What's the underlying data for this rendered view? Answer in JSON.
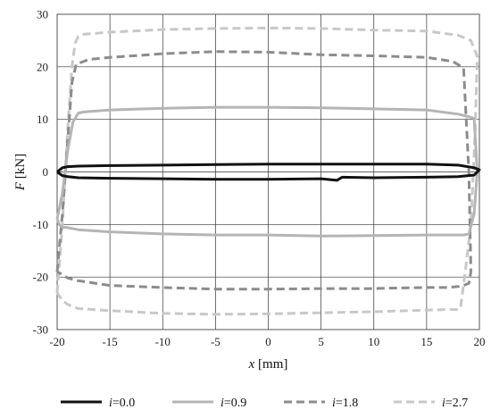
{
  "chart_data": {
    "type": "line",
    "xlabel_var": "x",
    "xlabel_unit": " [mm]",
    "ylabel_var": "F",
    "ylabel_unit": " [kN]",
    "xlim": [
      -20,
      20
    ],
    "ylim": [
      -30,
      30
    ],
    "xticks": [
      -20,
      -15,
      -10,
      -5,
      0,
      5,
      10,
      15,
      20
    ],
    "yticks": [
      -30,
      -20,
      -10,
      0,
      10,
      20,
      30
    ],
    "grid": true,
    "legend_placement": "bottom",
    "series": [
      {
        "name": "i=0.0",
        "legend_var": "i",
        "legend_val": "=0.0",
        "color": "#111111",
        "dash": "solid",
        "x": [
          -20,
          -19.5,
          -19,
          -18,
          -15,
          -10,
          -5,
          0,
          5,
          10,
          15,
          18,
          19.5,
          20,
          19.5,
          18,
          15,
          10,
          7,
          6.5,
          5,
          0,
          -5,
          -10,
          -15,
          -18,
          -19,
          -19.5,
          -20
        ],
        "y": [
          0,
          0.8,
          1.0,
          1.1,
          1.2,
          1.3,
          1.4,
          1.5,
          1.5,
          1.5,
          1.5,
          1.3,
          0.8,
          0.4,
          -0.6,
          -0.9,
          -1.0,
          -1.1,
          -1.0,
          -1.6,
          -1.3,
          -1.4,
          -1.4,
          -1.3,
          -1.2,
          -1.1,
          -0.9,
          -0.7,
          0
        ]
      },
      {
        "name": "i=0.9",
        "legend_var": "i",
        "legend_val": "=0.9",
        "color": "#b5b5b5",
        "dash": "solid",
        "x": [
          -20,
          -19.5,
          -19,
          -18.5,
          -18,
          -17.5,
          -15,
          -10,
          -5,
          0,
          5,
          10,
          15,
          18,
          19,
          19.5,
          19.8,
          19.5,
          19,
          18.5,
          18,
          15,
          10,
          5,
          0,
          -5,
          -10,
          -15,
          -18,
          -19,
          -19.5,
          -19.7,
          -19.8,
          -20
        ],
        "y": [
          -9,
          -4,
          4,
          9.5,
          11.2,
          11.4,
          11.8,
          12.1,
          12.3,
          12.3,
          12.2,
          12.0,
          11.8,
          11.0,
          10.5,
          10.2,
          0,
          -8,
          -11.8,
          -12,
          -12,
          -12,
          -12.1,
          -12.2,
          -12.0,
          -12.0,
          -11.8,
          -11.4,
          -11.0,
          -10.6,
          -10.5,
          -10.2,
          -10.0,
          -9
        ]
      },
      {
        "name": "i=1.8",
        "legend_var": "i",
        "legend_val": "=1.8",
        "color": "#8c8c8c",
        "dash": "dashed",
        "x": [
          -20,
          -19.5,
          -19,
          -18.6,
          -18.2,
          -17,
          -15,
          -12,
          -10,
          -5,
          0,
          5,
          10,
          15,
          17.5,
          18.5,
          19,
          19.2,
          19,
          18.5,
          18,
          17,
          15,
          12,
          10,
          5,
          0,
          -5,
          -10,
          -15,
          -18,
          -19,
          -19.5,
          -20
        ],
        "y": [
          -19,
          -8,
          6,
          17,
          20.5,
          21.4,
          21.8,
          22.2,
          22.5,
          22.9,
          22.8,
          22.3,
          22.1,
          21.8,
          21.0,
          19.8,
          0,
          -19,
          -21.2,
          -21.6,
          -21.8,
          -22.0,
          -22.0,
          -22.1,
          -22.2,
          -22.2,
          -22.3,
          -22.3,
          -22.0,
          -21.6,
          -20.7,
          -20.2,
          -19.5,
          -19
        ]
      },
      {
        "name": "i=2.7",
        "legend_var": "i",
        "legend_val": "=2.7",
        "color": "#c8c8c8",
        "dash": "dashed",
        "x": [
          -20,
          -19.5,
          -19,
          -18.6,
          -18.3,
          -18,
          -17.5,
          -15,
          -10,
          -5,
          0,
          5,
          10,
          15,
          18,
          19.2,
          19.8,
          19.6,
          19.2,
          18.6,
          18.2,
          17.8,
          17.4,
          17,
          15,
          10,
          5,
          0,
          -5,
          -10,
          -15,
          -18,
          -19,
          -19.5,
          -20
        ],
        "y": [
          -23,
          -10,
          8,
          20,
          24.5,
          25.8,
          26.2,
          26.6,
          27.1,
          27.3,
          27.4,
          27.3,
          27.0,
          26.8,
          26.0,
          25.0,
          22,
          8,
          -10,
          -20,
          -26.0,
          -26.2,
          -26.2,
          -26.2,
          -26.3,
          -26.6,
          -26.8,
          -27.0,
          -27.1,
          -26.9,
          -26.4,
          -26.0,
          -25.2,
          -24.5,
          -23
        ]
      }
    ]
  }
}
